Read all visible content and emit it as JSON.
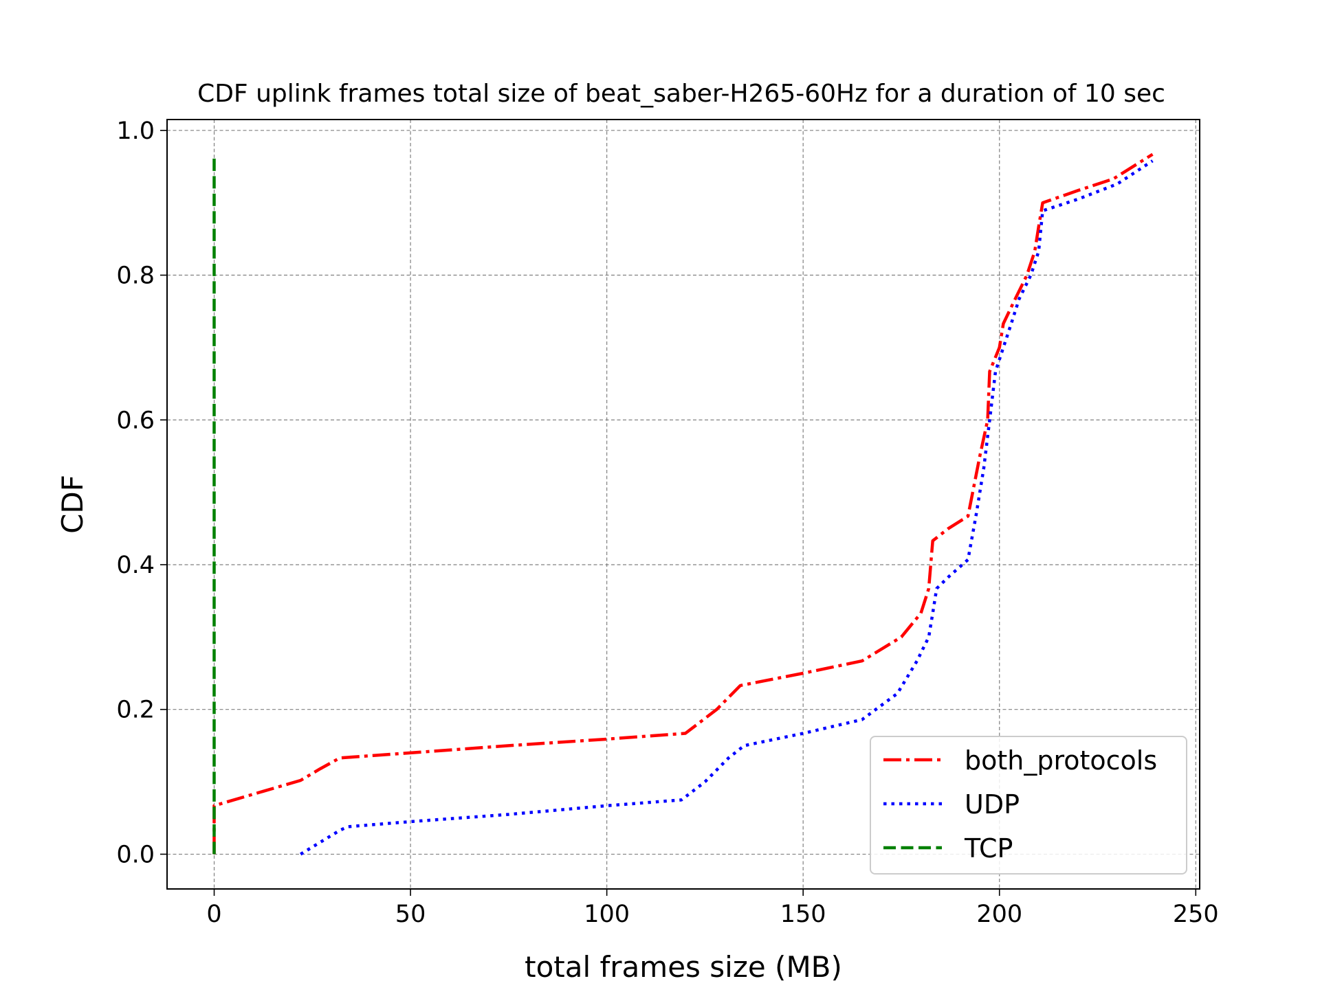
{
  "chart_data": {
    "type": "line",
    "title": "CDF uplink frames total size of beat_saber-H265-60Hz for a duration of 10 sec",
    "xlabel": "total frames size (MB)",
    "ylabel": "CDF",
    "xlim": [
      -12,
      251
    ],
    "ylim": [
      -0.048,
      1.015
    ],
    "x_ticks": [
      0,
      50,
      100,
      150,
      200,
      250
    ],
    "y_ticks": [
      0.0,
      0.2,
      0.4,
      0.6,
      0.8,
      1.0
    ],
    "x_tick_labels": [
      "0",
      "50",
      "100",
      "150",
      "200",
      "250"
    ],
    "y_tick_labels": [
      "0.0",
      "0.2",
      "0.4",
      "0.6",
      "0.8",
      "1.0"
    ],
    "grid": true,
    "legend_position": "bottom-right",
    "series": [
      {
        "name": "both_protocols",
        "color": "#ff0000",
        "style": "dash-dot",
        "points": [
          [
            0,
            0.0
          ],
          [
            0,
            0.067
          ],
          [
            10,
            0.083
          ],
          [
            22,
            0.102
          ],
          [
            27,
            0.118
          ],
          [
            32,
            0.133
          ],
          [
            50,
            0.14
          ],
          [
            75,
            0.15
          ],
          [
            100,
            0.159
          ],
          [
            120,
            0.167
          ],
          [
            128,
            0.2
          ],
          [
            134,
            0.233
          ],
          [
            150,
            0.25
          ],
          [
            165,
            0.267
          ],
          [
            175,
            0.3
          ],
          [
            180,
            0.333
          ],
          [
            182,
            0.367
          ],
          [
            183,
            0.433
          ],
          [
            187,
            0.45
          ],
          [
            192,
            0.467
          ],
          [
            195,
            0.55
          ],
          [
            197,
            0.6
          ],
          [
            197.5,
            0.667
          ],
          [
            200,
            0.7
          ],
          [
            201,
            0.733
          ],
          [
            204,
            0.767
          ],
          [
            207,
            0.8
          ],
          [
            209,
            0.833
          ],
          [
            210,
            0.867
          ],
          [
            211,
            0.9
          ],
          [
            220,
            0.917
          ],
          [
            229,
            0.933
          ],
          [
            239,
            0.967
          ]
        ]
      },
      {
        "name": "UDP",
        "color": "#0000ff",
        "style": "dotted",
        "points": [
          [
            22,
            0.0
          ],
          [
            32,
            0.033
          ],
          [
            34,
            0.038
          ],
          [
            50,
            0.045
          ],
          [
            75,
            0.055
          ],
          [
            100,
            0.067
          ],
          [
            119,
            0.075
          ],
          [
            125,
            0.1
          ],
          [
            131,
            0.133
          ],
          [
            135,
            0.15
          ],
          [
            150,
            0.167
          ],
          [
            165,
            0.186
          ],
          [
            174,
            0.222
          ],
          [
            179,
            0.267
          ],
          [
            182,
            0.3
          ],
          [
            183,
            0.333
          ],
          [
            184,
            0.367
          ],
          [
            187,
            0.383
          ],
          [
            192,
            0.407
          ],
          [
            194,
            0.467
          ],
          [
            196,
            0.533
          ],
          [
            197.5,
            0.6
          ],
          [
            199,
            0.667
          ],
          [
            201,
            0.7
          ],
          [
            203,
            0.733
          ],
          [
            205,
            0.767
          ],
          [
            208,
            0.8
          ],
          [
            210,
            0.833
          ],
          [
            211,
            0.889
          ],
          [
            220,
            0.905
          ],
          [
            230,
            0.926
          ],
          [
            239,
            0.958
          ]
        ]
      },
      {
        "name": "TCP",
        "color": "#008000",
        "style": "dashed",
        "points": [
          [
            0,
            0.0
          ],
          [
            0,
            0.967
          ]
        ]
      }
    ]
  }
}
